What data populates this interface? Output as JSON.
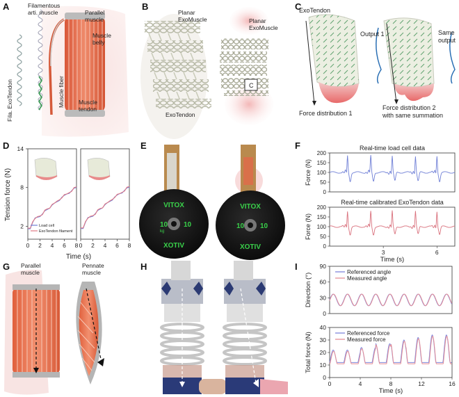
{
  "panel_letters": [
    "A",
    "B",
    "C",
    "D",
    "E",
    "F",
    "G",
    "H",
    "I"
  ],
  "panelA": {
    "labels": {
      "filamentous": "Filamentous\narti. muscle",
      "fila_exotendon": "Fila. ExoTendon",
      "muscle_fiber": "Muscle fiber",
      "parallel_muscle": "Parallel\nmuscle",
      "muscle_belly": "Muscle\nbelly",
      "muscle_tendon": "Muscle\ntendon"
    }
  },
  "panelB": {
    "labels": {
      "planar_left": "Planar\nExoMuscle",
      "planar_right": "Planar\nExoMuscle",
      "exotendon": "ExoTendon",
      "c_box": "C"
    }
  },
  "panelC": {
    "labels": {
      "exotendon": "ExoTendon",
      "output1": "Output 1",
      "same_output": "Same\noutput",
      "force1": "Force distribution 1",
      "force2": "Force distribution 2\nwith same summation"
    }
  },
  "panelE": {
    "plate_text": [
      "VITOX",
      "10",
      "kg",
      "10",
      "kg",
      "XOTIV"
    ]
  },
  "panelG": {
    "labels": {
      "parallel": "Parallel\nmuscle",
      "pennate": "Pennate\nmuscle"
    }
  },
  "chart_data": [
    {
      "id": "D",
      "type": "line",
      "ylabel": "Tension force (N)",
      "xlabel": "Time (s)",
      "subplots": 2,
      "xlim": [
        0,
        8
      ],
      "ylim": [
        0,
        14
      ],
      "yticks": [
        2,
        8,
        14
      ],
      "xticks": [
        0,
        2,
        4,
        6,
        8
      ],
      "series": [
        {
          "name": "Load cell",
          "color": "#6f7fd6",
          "x": [
            0,
            0.4,
            0.8,
            1.2,
            1.6,
            2.0,
            2.4,
            2.8,
            3.2,
            3.6,
            4.0,
            4.4,
            4.8,
            5.2,
            5.6,
            6.0,
            6.4,
            6.8,
            7.2,
            7.6,
            8.0
          ],
          "y": [
            1.6,
            1.6,
            2.6,
            3.3,
            3.4,
            3.5,
            3.9,
            4.4,
            4.6,
            4.8,
            5.3,
            5.6,
            5.8,
            6.0,
            6.5,
            6.8,
            7.0,
            7.1,
            7.5,
            7.9,
            8.0
          ]
        },
        {
          "name": "ExoTendon filament",
          "color": "#e07a86",
          "x": [
            0,
            0.4,
            0.8,
            1.2,
            1.6,
            2.0,
            2.4,
            2.8,
            3.2,
            3.6,
            4.0,
            4.4,
            4.8,
            5.2,
            5.6,
            6.0,
            6.4,
            6.8,
            7.2,
            7.6,
            8.0
          ],
          "y": [
            1.7,
            1.7,
            2.7,
            3.2,
            3.5,
            3.6,
            3.8,
            4.5,
            4.7,
            4.8,
            5.4,
            5.6,
            5.9,
            6.1,
            6.4,
            6.9,
            7.0,
            7.2,
            7.4,
            8.0,
            8.1
          ]
        }
      ]
    },
    {
      "id": "F",
      "type": "line",
      "titles": [
        "Real-time load cell data",
        "Real-time calibrated ExoTendon data"
      ],
      "ylabel": "Force (N)",
      "xlabel": "Time (s)",
      "ylim": [
        0,
        200
      ],
      "yticks": [
        0,
        50,
        100,
        150,
        200
      ],
      "xlim": [
        0,
        7
      ],
      "xticks": [
        3,
        6
      ],
      "series": [
        {
          "name": "Load cell",
          "color": "#6f7fd6",
          "spike_times": [
            1.0,
            2.3,
            3.5,
            4.8,
            6.0
          ],
          "baseline": 100,
          "peak": 185,
          "trough": 55
        },
        {
          "name": "ExoTendon",
          "color": "#d9707c",
          "spike_times": [
            1.0,
            2.3,
            3.5,
            4.8,
            6.0
          ],
          "baseline": 100,
          "peak": 180,
          "trough": 60
        }
      ]
    },
    {
      "id": "I",
      "type": "line",
      "xlabel": "Time (s)",
      "xlim": [
        0,
        16
      ],
      "xticks": [
        0,
        4,
        8,
        12,
        16
      ],
      "top": {
        "ylabel": "Direction (°)",
        "ylim": [
          0,
          90
        ],
        "yticks": [
          0,
          30,
          60,
          90
        ],
        "legend": [
          "Referenced angle",
          "Measured angle"
        ],
        "period": 1.85,
        "min": 15,
        "max": 37
      },
      "bottom": {
        "ylabel": "Total force (N)",
        "ylim": [
          0,
          40
        ],
        "yticks": [
          0,
          10,
          20,
          30,
          40
        ],
        "legend": [
          "Referenced force",
          "Measured force"
        ],
        "period": 1.85,
        "base": 12,
        "peaks": [
          22,
          22,
          24,
          27,
          30,
          32,
          34,
          34
        ]
      },
      "colors": {
        "referenced": "#7f86db",
        "measured": "#e58e96"
      }
    }
  ]
}
